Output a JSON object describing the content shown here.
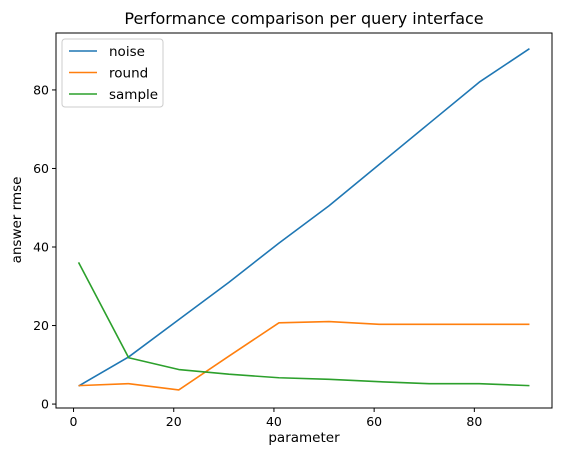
{
  "chart_data": {
    "type": "line",
    "title": "Performance comparison per query interface",
    "xlabel": "parameter",
    "ylabel": "answer rmse",
    "xlim": [
      -3.5,
      95.5
    ],
    "ylim": [
      -1,
      94.5
    ],
    "xticks": [
      0,
      20,
      40,
      60,
      80
    ],
    "yticks": [
      0,
      20,
      40,
      60,
      80
    ],
    "grid": false,
    "legend": "upper-left",
    "series": [
      {
        "name": "noise",
        "color": "#1f77b4",
        "x": [
          1,
          11,
          21,
          31,
          41,
          51,
          61,
          71,
          81,
          91
        ],
        "y": [
          4.6,
          12.0,
          21.5,
          31.0,
          41.0,
          50.5,
          61.0,
          71.5,
          82.0,
          90.5
        ]
      },
      {
        "name": "round",
        "color": "#ff7f0e",
        "x": [
          1,
          11,
          21,
          31,
          41,
          51,
          61,
          71,
          81,
          91
        ],
        "y": [
          4.7,
          5.2,
          3.6,
          12.2,
          20.7,
          21.0,
          20.3,
          20.3,
          20.3,
          20.3
        ]
      },
      {
        "name": "sample",
        "color": "#2ca02c",
        "x": [
          1,
          11,
          21,
          31,
          41,
          51,
          61,
          71,
          81,
          91
        ],
        "y": [
          36.1,
          11.8,
          8.8,
          7.6,
          6.7,
          6.3,
          5.7,
          5.2,
          5.2,
          4.7
        ]
      }
    ]
  }
}
